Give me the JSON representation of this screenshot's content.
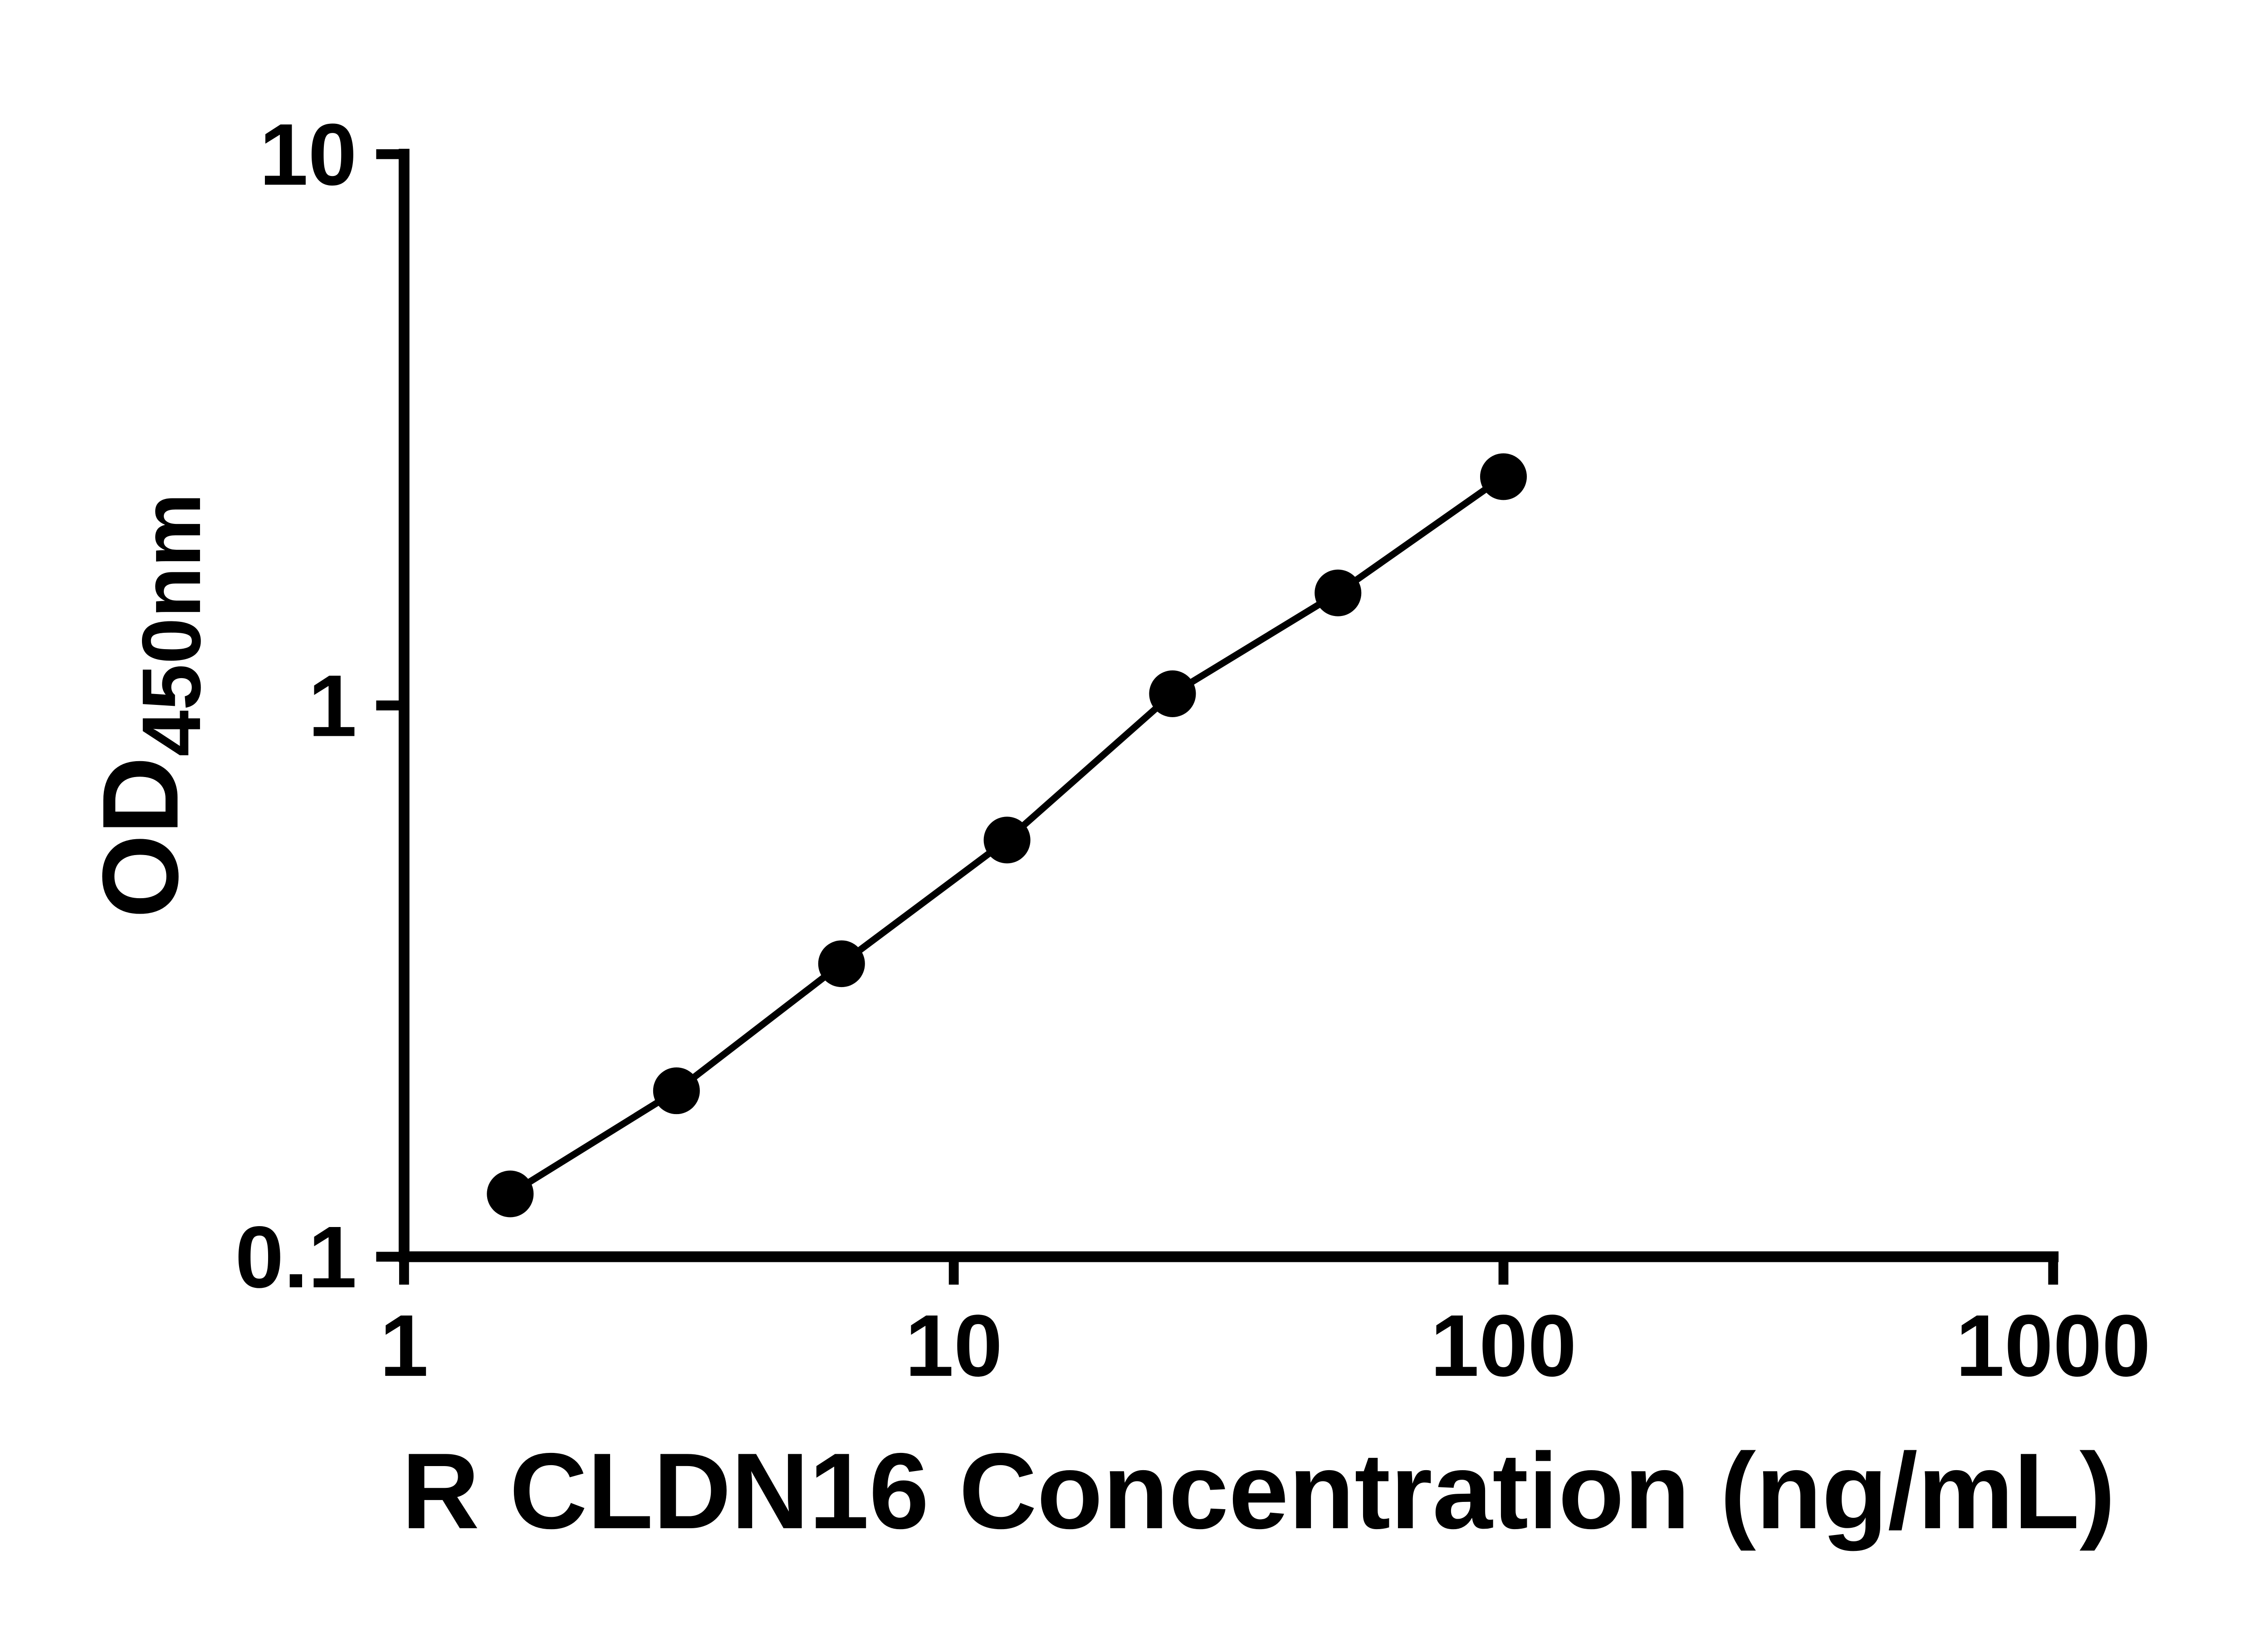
{
  "figure": {
    "background": "#ffffff",
    "foreground": "#000000"
  },
  "chart_data": {
    "type": "line",
    "title": "",
    "grid": false,
    "legend": "none",
    "x_axis": {
      "label": "R CLDN16 Concentration (ng/mL)",
      "scale": "log",
      "min": 1,
      "max": 1000,
      "ticks": [
        {
          "value": 1,
          "label": "1"
        },
        {
          "value": 10,
          "label": "10"
        },
        {
          "value": 100,
          "label": "100"
        },
        {
          "value": 1000,
          "label": "1000"
        }
      ]
    },
    "y_axis": {
      "label_main": "OD",
      "label_sub": "450nm",
      "label": "OD450nm",
      "scale": "log",
      "min": 0.1,
      "max": 10,
      "ticks": [
        {
          "value": 0.1,
          "label": "0.1"
        },
        {
          "value": 1,
          "label": "1"
        },
        {
          "value": 10,
          "label": "10"
        }
      ]
    },
    "series": [
      {
        "color": "#000000",
        "marker": "circle",
        "x": [
          1.56,
          3.13,
          6.25,
          12.5,
          25,
          50,
          100
        ],
        "y": [
          0.13,
          0.2,
          0.34,
          0.57,
          1.05,
          1.6,
          2.6
        ]
      }
    ]
  }
}
